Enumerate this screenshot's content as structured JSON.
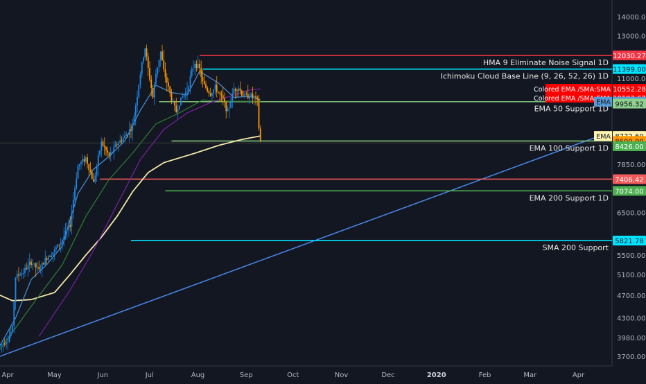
{
  "chart_data": {
    "type": "candlestick",
    "x_axis": {
      "labels": [
        "Apr",
        "May",
        "Jun",
        "Jul",
        "Aug",
        "Sep",
        "Oct",
        "Nov",
        "Dec",
        "2020",
        "Feb",
        "Mar",
        "Apr"
      ],
      "bold_labels": [
        "2020"
      ]
    },
    "y_axis": {
      "scale": "log",
      "ticks": [
        3700,
        3980,
        4300,
        4700,
        5100,
        5500,
        6500,
        7850,
        8426,
        9956.32,
        11000,
        13000,
        14000
      ],
      "tick_labels": [
        "3700.00",
        "3980.00",
        "4300.00",
        "4700.00",
        "5100.00",
        "5500.00",
        "6500.00",
        "7850.00",
        "8426.00",
        "9956.32",
        "11000.00",
        "13000.00",
        "14000.00"
      ]
    },
    "price_series": {
      "interval": "1D",
      "approx_daily_closes": [
        [
          0,
          3860
        ],
        [
          5,
          3950
        ],
        [
          8,
          4130
        ],
        [
          10,
          5050
        ],
        [
          15,
          5150
        ],
        [
          20,
          5350
        ],
        [
          25,
          5180
        ],
        [
          30,
          5450
        ],
        [
          35,
          5600
        ],
        [
          40,
          5850
        ],
        [
          45,
          6200
        ],
        [
          50,
          7800
        ],
        [
          55,
          8050
        ],
        [
          60,
          7300
        ],
        [
          65,
          8550
        ],
        [
          70,
          8100
        ],
        [
          75,
          8500
        ],
        [
          80,
          8750
        ],
        [
          85,
          9100
        ],
        [
          88,
          10300
        ],
        [
          90,
          11200
        ],
        [
          93,
          12400
        ],
        [
          95,
          11400
        ],
        [
          98,
          10200
        ],
        [
          100,
          11200
        ],
        [
          103,
          12200
        ],
        [
          105,
          11300
        ],
        [
          108,
          10600
        ],
        [
          110,
          10100
        ],
        [
          113,
          9650
        ],
        [
          115,
          10000
        ],
        [
          118,
          10300
        ],
        [
          120,
          10500
        ],
        [
          123,
          11300
        ],
        [
          125,
          11700
        ],
        [
          128,
          11400
        ],
        [
          130,
          10800
        ],
        [
          133,
          10500
        ],
        [
          135,
          10350
        ],
        [
          138,
          10600
        ],
        [
          140,
          10400
        ],
        [
          143,
          10100
        ],
        [
          146,
          9650
        ],
        [
          148,
          10050
        ],
        [
          150,
          10550
        ],
        [
          153,
          10600
        ],
        [
          155,
          10350
        ],
        [
          158,
          10250
        ],
        [
          160,
          10300
        ],
        [
          163,
          10200
        ],
        [
          165,
          10050
        ],
        [
          166,
          9050
        ],
        [
          167,
          8600
        ]
      ]
    },
    "horizontal_levels": [
      {
        "label": "HMA 9 Eliminate Noise Signal 1D",
        "price_label": "12030.27",
        "value": 12030.27,
        "color": "#f23645"
      },
      {
        "label": "Ichimoku Cloud Base Line (9, 26, 52, 26) 1D",
        "price_label": "11399.00",
        "value": 11399.0,
        "color": "#00e5ff"
      },
      {
        "label": "EMA 50 Support 1D",
        "price_label": "10031.20",
        "value": 10031.2,
        "color": "#7fc37a"
      },
      {
        "label": "EMA 100 Support 1D",
        "price_label": "8600.00",
        "value": 8600.0,
        "color": "#7fc37a"
      },
      {
        "label": "",
        "price_label": "7406.42",
        "value": 7406.42,
        "color": "#f25a5a"
      },
      {
        "label": "EMA 200 Support 1D",
        "price_label": "7074.00",
        "value": 7074.0,
        "color": "#4caf50"
      },
      {
        "label": "SMA 200 Support",
        "price_label": "5821.78",
        "value": 5821.78,
        "color": "#00e5ff"
      }
    ],
    "price_scale_tags": [
      {
        "text": "12030.27",
        "value": 12030.27,
        "bg": "#f23645",
        "fg": "#ffffff"
      },
      {
        "text": "11399.00",
        "value": 11399.0,
        "bg": "#00e5ff",
        "fg": "#131722"
      },
      {
        "text": "10552.28",
        "value": 10552.28,
        "bg": "#ff0000",
        "fg": "#ffffff"
      },
      {
        "text": "10193.67",
        "value": 10193.67,
        "bg": "#ff0000",
        "fg": "#ffffff"
      },
      {
        "text": "10031.20",
        "value": 10031.2,
        "bg": "#5b9bd5",
        "fg": "#131722"
      },
      {
        "text": "9956.32",
        "value": 9956.32,
        "bg": "#8fd08c",
        "fg": "#131722"
      },
      {
        "text": "8772.60",
        "value": 8772.6,
        "bg": "#fff3b0",
        "fg": "#131722"
      },
      {
        "text": "8600.00",
        "value": 8600.0,
        "bg": "#ff9800",
        "fg": "#131722"
      },
      {
        "text": "8426.00",
        "value": 8426.0,
        "bg": "#4caf50",
        "fg": "#ffffff"
      },
      {
        "text": "7406.42",
        "value": 7406.42,
        "bg": "#f25a5a",
        "fg": "#ffffff"
      },
      {
        "text": "7074.00",
        "value": 7074.0,
        "bg": "#4caf50",
        "fg": "#ffffff"
      },
      {
        "text": "5821.78",
        "value": 5821.78,
        "bg": "#00e5ff",
        "fg": "#131722"
      }
    ],
    "indicator_labels": [
      {
        "text": "Colored EMA /SMA:SMA",
        "value": 10552.28,
        "bg": "#ff0000",
        "fg": "#ffffff"
      },
      {
        "text": "Colored EMA /SMA:EMA",
        "value": 10193.67,
        "bg": "#ff0000",
        "fg": "#ffffff"
      },
      {
        "text": "EMA",
        "value": 8772.6,
        "bg": "#fff3b0",
        "fg": "#131722"
      },
      {
        "text": "EMA",
        "value": 10031.2,
        "bg": "#5b9bd5",
        "fg": "#131722"
      }
    ],
    "trendline": {
      "color": "#4a86e8",
      "points": [
        [
          0,
          3700
        ],
        [
          340,
          8772.6
        ]
      ]
    },
    "moving_averages": [
      {
        "name": "EMA",
        "color": "#fff3b0",
        "points": [
          [
            0,
            4700
          ],
          [
            8,
            4600
          ],
          [
            20,
            4620
          ],
          [
            35,
            4750
          ],
          [
            45,
            5100
          ],
          [
            55,
            5500
          ],
          [
            65,
            5900
          ],
          [
            75,
            6400
          ],
          [
            85,
            7050
          ],
          [
            95,
            7600
          ],
          [
            105,
            7900
          ],
          [
            115,
            8050
          ],
          [
            125,
            8200
          ],
          [
            140,
            8450
          ],
          [
            155,
            8650
          ],
          [
            167,
            8772.6
          ]
        ]
      },
      {
        "name": "",
        "color": "#4a8fd6",
        "points": [
          [
            0,
            3860
          ],
          [
            10,
            4300
          ],
          [
            20,
            5000
          ],
          [
            30,
            5300
          ],
          [
            40,
            5700
          ],
          [
            50,
            7000
          ],
          [
            60,
            7700
          ],
          [
            70,
            8100
          ],
          [
            80,
            8600
          ],
          [
            90,
            9700
          ],
          [
            100,
            10700
          ],
          [
            110,
            10400
          ],
          [
            120,
            10300
          ],
          [
            128,
            11300
          ],
          [
            140,
            10800
          ],
          [
            150,
            10200
          ],
          [
            160,
            10250
          ],
          [
            167,
            10100
          ]
        ]
      },
      {
        "name": "",
        "color": "#2e7d32",
        "points": [
          [
            0,
            3800
          ],
          [
            20,
            4500
          ],
          [
            40,
            5300
          ],
          [
            55,
            6400
          ],
          [
            70,
            7400
          ],
          [
            85,
            8200
          ],
          [
            100,
            9200
          ],
          [
            115,
            9600
          ],
          [
            130,
            10100
          ],
          [
            145,
            10050
          ],
          [
            160,
            10050
          ],
          [
            167,
            10031.2
          ]
        ]
      },
      {
        "name": "",
        "color": "#7b1fa2",
        "points": [
          [
            25,
            4000
          ],
          [
            45,
            4800
          ],
          [
            60,
            5600
          ],
          [
            75,
            6700
          ],
          [
            90,
            8000
          ],
          [
            105,
            9000
          ],
          [
            120,
            9600
          ],
          [
            135,
            10000
          ],
          [
            150,
            10300
          ],
          [
            160,
            10500
          ],
          [
            167,
            10552.28
          ]
        ]
      }
    ]
  }
}
